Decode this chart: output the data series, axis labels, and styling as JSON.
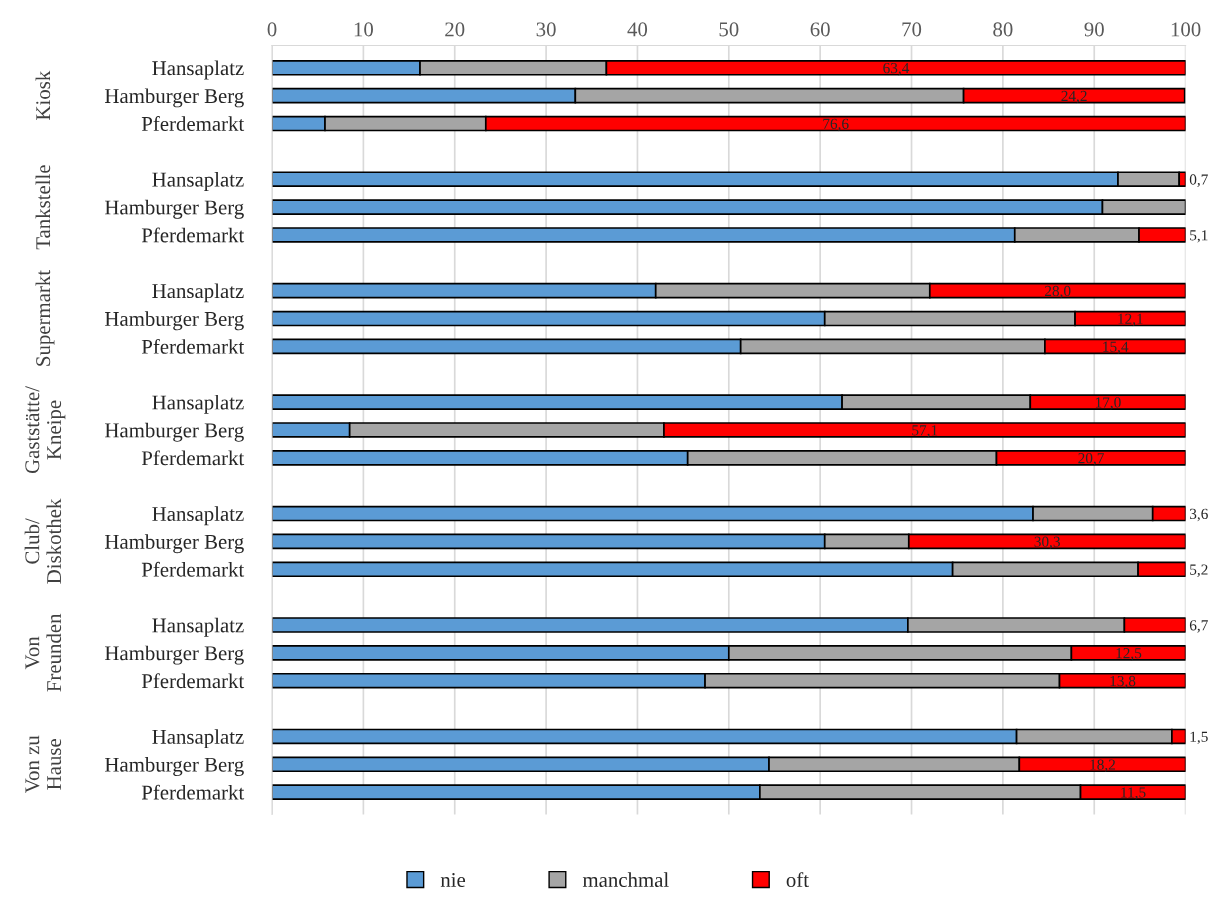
{
  "chart_data": {
    "type": "bar",
    "orientation": "horizontal",
    "stacked": true,
    "categories": [
      "Hansaplatz",
      "Hamburger Berg",
      "Pferdemarkt",
      "Hansaplatz",
      "Hamburger Berg",
      "Pferdemarkt",
      "Hansaplatz",
      "Hamburger Berg",
      "Pferdemarkt",
      "Hansaplatz",
      "Hamburger Berg",
      "Pferdemarkt",
      "Hansaplatz",
      "Hamburger Berg",
      "Pferdemarkt",
      "Hansaplatz",
      "Hamburger Berg",
      "Pferdemarkt",
      "Hansaplatz",
      "Hamburger Berg",
      "Pferdemarkt"
    ],
    "annotations": [
      "Kiosk",
      "Tankstelle",
      "Supermarkt",
      "Gaststätte/\nKneipe",
      "Club/\nDiskothek",
      "Von\nFreunden",
      "Von zu\nHause"
    ],
    "series": [
      {
        "name": "nie",
        "color": "#5b9bd5",
        "values": [
          16.2,
          33.2,
          5.8,
          92.6,
          90.9,
          81.3,
          42.0,
          60.5,
          51.3,
          62.4,
          8.5,
          45.5,
          83.3,
          60.5,
          74.5,
          69.6,
          50.0,
          47.4,
          81.5,
          54.4,
          53.4
        ]
      },
      {
        "name": "manchmal",
        "color": "#a5a5a5",
        "values": [
          20.4,
          42.5,
          17.6,
          6.7,
          9.1,
          13.6,
          30.0,
          27.4,
          33.3,
          20.6,
          34.4,
          33.8,
          13.1,
          9.2,
          20.3,
          23.7,
          37.5,
          38.8,
          17.0,
          27.4,
          35.1
        ]
      },
      {
        "name": "oft",
        "color": "#ff0000",
        "values": [
          63.4,
          24.2,
          76.6,
          0.7,
          null,
          5.1,
          28.0,
          12.1,
          15.4,
          17.0,
          57.1,
          20.7,
          3.6,
          30.3,
          5.2,
          6.7,
          12.5,
          13.8,
          1.5,
          18.2,
          11.5
        ],
        "value_labels": [
          "63,4",
          "24,2",
          "76,6",
          "0,7",
          null,
          "5,1",
          "28,0",
          "12,1",
          "15,4",
          "17,0",
          "57,1",
          "20,7",
          "3,6",
          "30,3",
          "5,2",
          "6,7",
          "12,5",
          "13,8",
          "1,5",
          "18,2",
          "11,5"
        ]
      }
    ],
    "xlim": [
      0,
      100
    ],
    "xticks": [
      0,
      10,
      20,
      30,
      40,
      50,
      60,
      70,
      80,
      90,
      100
    ],
    "grid": "x",
    "legend": "bottom"
  }
}
